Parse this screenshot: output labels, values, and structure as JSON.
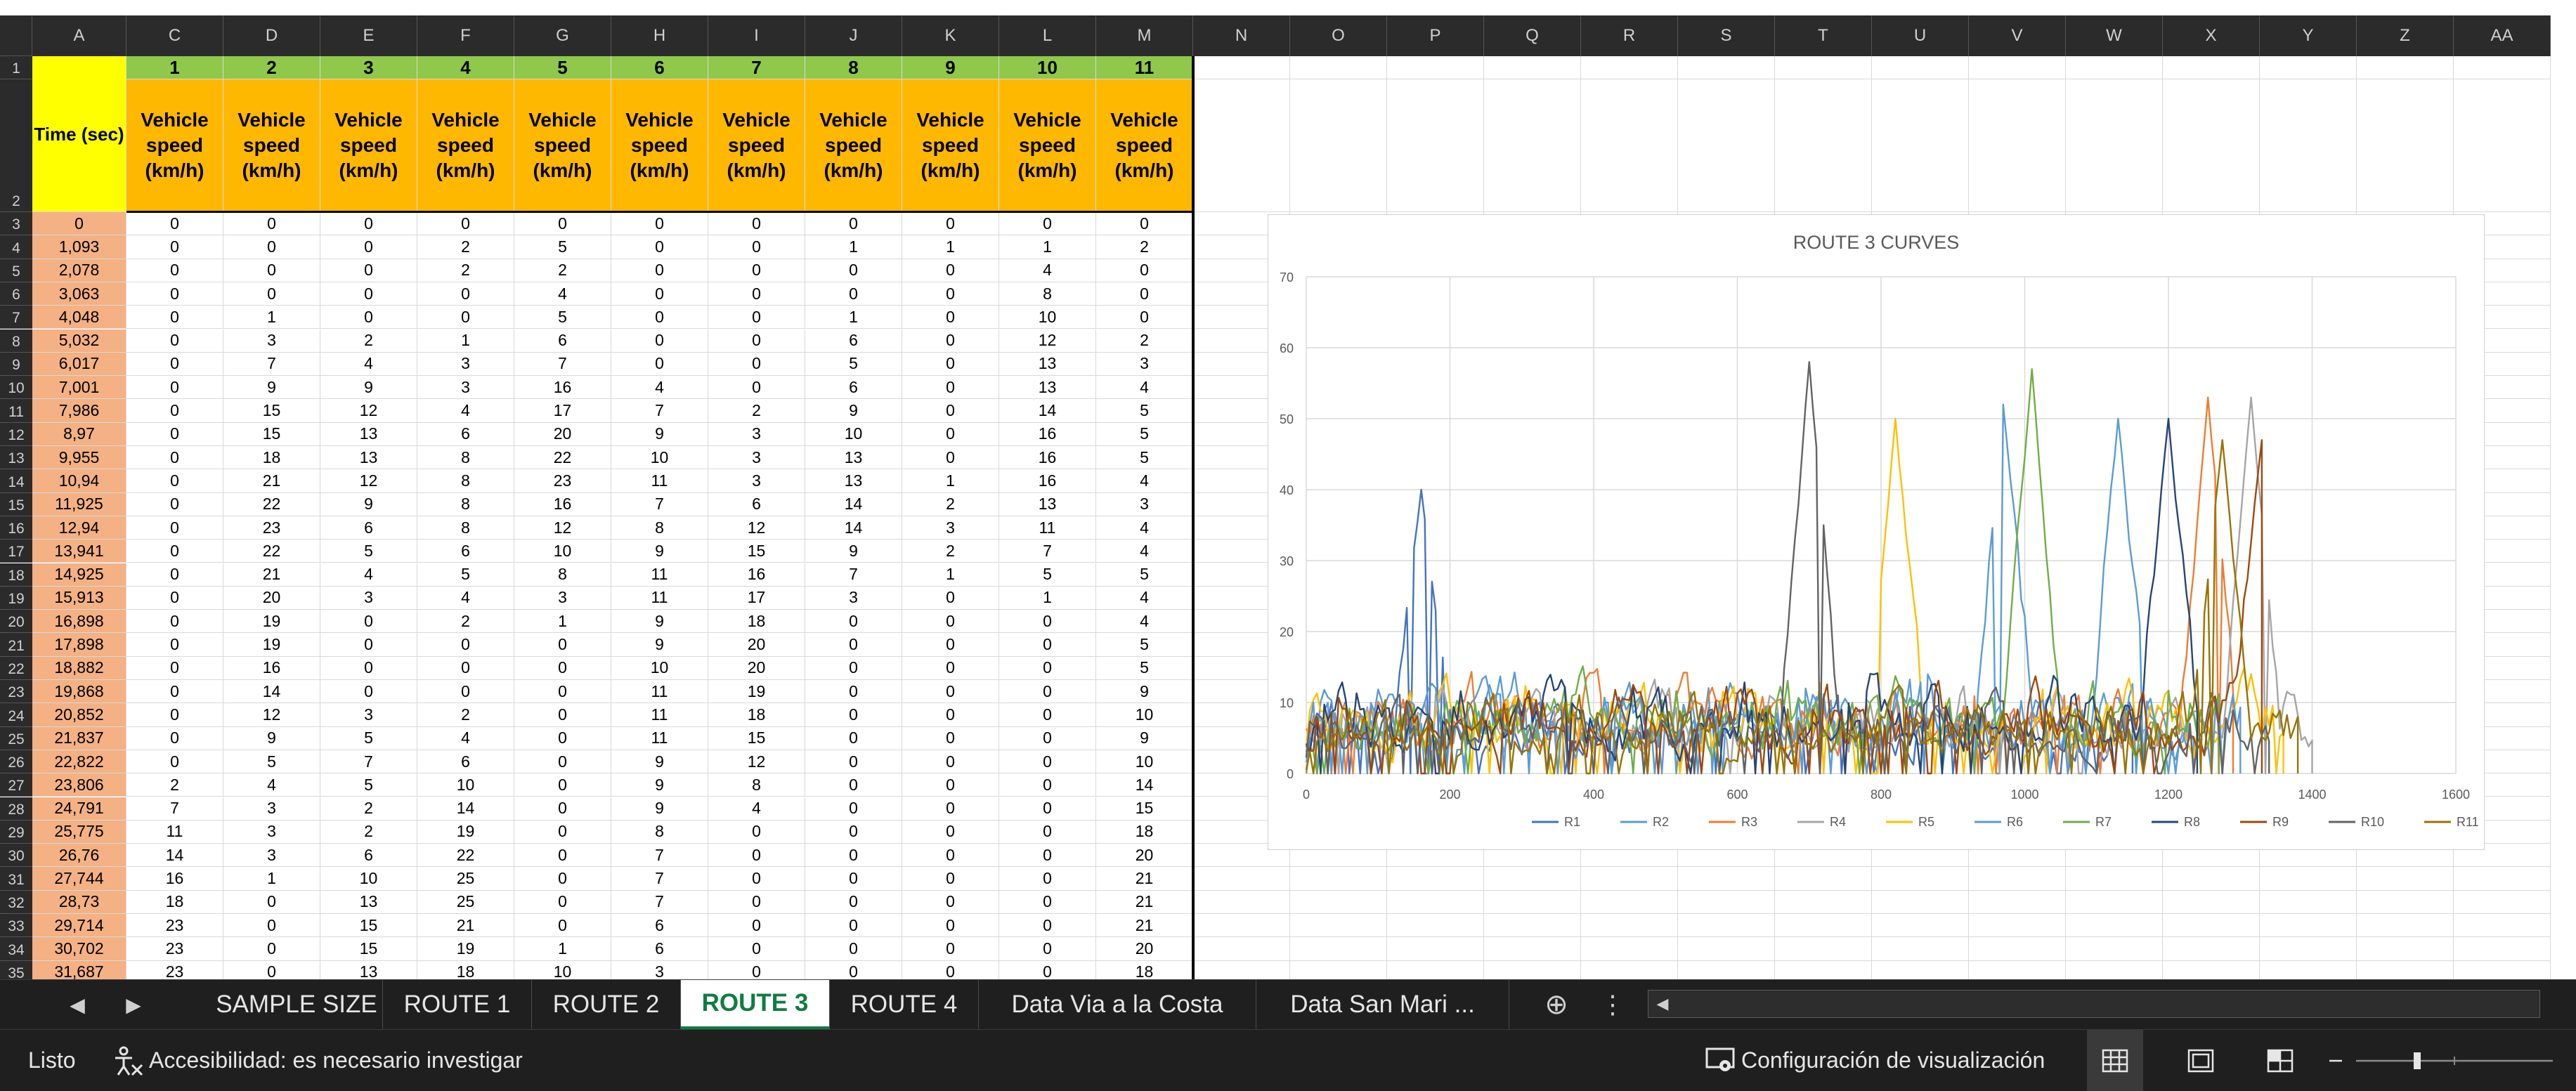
{
  "columns": [
    "A",
    "C",
    "D",
    "E",
    "F",
    "G",
    "H",
    "I",
    "J",
    "K",
    "L",
    "M",
    "N",
    "O",
    "P",
    "Q",
    "R",
    "S",
    "T",
    "U",
    "V",
    "W",
    "X",
    "Y",
    "Z",
    "AA"
  ],
  "header": {
    "vehicle_numbers": [
      "1",
      "2",
      "3",
      "4",
      "5",
      "6",
      "7",
      "8",
      "9",
      "10",
      "11"
    ],
    "time_label": "Time (sec)",
    "speed_label": "Vehicle speed (km/h)"
  },
  "rows": [
    {
      "num": "3",
      "t": "0",
      "v": [
        "0",
        "0",
        "0",
        "0",
        "0",
        "0",
        "0",
        "0",
        "0",
        "0",
        "0"
      ]
    },
    {
      "num": "4",
      "t": "1,093",
      "v": [
        "0",
        "0",
        "0",
        "2",
        "5",
        "0",
        "0",
        "1",
        "1",
        "1",
        "2"
      ]
    },
    {
      "num": "5",
      "t": "2,078",
      "v": [
        "0",
        "0",
        "0",
        "2",
        "2",
        "0",
        "0",
        "0",
        "0",
        "4",
        "0"
      ]
    },
    {
      "num": "6",
      "t": "3,063",
      "v": [
        "0",
        "0",
        "0",
        "0",
        "4",
        "0",
        "0",
        "0",
        "0",
        "8",
        "0"
      ]
    },
    {
      "num": "7",
      "t": "4,048",
      "v": [
        "0",
        "1",
        "0",
        "0",
        "5",
        "0",
        "0",
        "1",
        "0",
        "10",
        "0"
      ]
    },
    {
      "num": "8",
      "t": "5,032",
      "v": [
        "0",
        "3",
        "2",
        "1",
        "6",
        "0",
        "0",
        "6",
        "0",
        "12",
        "2"
      ]
    },
    {
      "num": "9",
      "t": "6,017",
      "v": [
        "0",
        "7",
        "4",
        "3",
        "7",
        "0",
        "0",
        "5",
        "0",
        "13",
        "3"
      ]
    },
    {
      "num": "10",
      "t": "7,001",
      "v": [
        "0",
        "9",
        "9",
        "3",
        "16",
        "4",
        "0",
        "6",
        "0",
        "13",
        "4"
      ]
    },
    {
      "num": "11",
      "t": "7,986",
      "v": [
        "0",
        "15",
        "12",
        "4",
        "17",
        "7",
        "2",
        "9",
        "0",
        "14",
        "5"
      ]
    },
    {
      "num": "12",
      "t": "8,97",
      "v": [
        "0",
        "15",
        "13",
        "6",
        "20",
        "9",
        "3",
        "10",
        "0",
        "16",
        "5"
      ]
    },
    {
      "num": "13",
      "t": "9,955",
      "v": [
        "0",
        "18",
        "13",
        "8",
        "22",
        "10",
        "3",
        "13",
        "0",
        "16",
        "5"
      ]
    },
    {
      "num": "14",
      "t": "10,94",
      "v": [
        "0",
        "21",
        "12",
        "8",
        "23",
        "11",
        "3",
        "13",
        "1",
        "16",
        "4"
      ]
    },
    {
      "num": "15",
      "t": "11,925",
      "v": [
        "0",
        "22",
        "9",
        "8",
        "16",
        "7",
        "6",
        "14",
        "2",
        "13",
        "3"
      ]
    },
    {
      "num": "16",
      "t": "12,94",
      "v": [
        "0",
        "23",
        "6",
        "8",
        "12",
        "8",
        "12",
        "14",
        "3",
        "11",
        "4"
      ]
    },
    {
      "num": "17",
      "t": "13,941",
      "v": [
        "0",
        "22",
        "5",
        "6",
        "10",
        "9",
        "15",
        "9",
        "2",
        "7",
        "4"
      ]
    },
    {
      "num": "18",
      "t": "14,925",
      "v": [
        "0",
        "21",
        "4",
        "5",
        "8",
        "11",
        "16",
        "7",
        "1",
        "5",
        "5"
      ]
    },
    {
      "num": "19",
      "t": "15,913",
      "v": [
        "0",
        "20",
        "3",
        "4",
        "3",
        "11",
        "17",
        "3",
        "0",
        "1",
        "4"
      ]
    },
    {
      "num": "20",
      "t": "16,898",
      "v": [
        "0",
        "19",
        "0",
        "2",
        "1",
        "9",
        "18",
        "0",
        "0",
        "0",
        "4"
      ]
    },
    {
      "num": "21",
      "t": "17,898",
      "v": [
        "0",
        "19",
        "0",
        "0",
        "0",
        "9",
        "20",
        "0",
        "0",
        "0",
        "5"
      ]
    },
    {
      "num": "22",
      "t": "18,882",
      "v": [
        "0",
        "16",
        "0",
        "0",
        "0",
        "10",
        "20",
        "0",
        "0",
        "0",
        "5"
      ]
    },
    {
      "num": "23",
      "t": "19,868",
      "v": [
        "0",
        "14",
        "0",
        "0",
        "0",
        "11",
        "19",
        "0",
        "0",
        "0",
        "9"
      ]
    },
    {
      "num": "24",
      "t": "20,852",
      "v": [
        "0",
        "12",
        "3",
        "2",
        "0",
        "11",
        "18",
        "0",
        "0",
        "0",
        "10"
      ]
    },
    {
      "num": "25",
      "t": "21,837",
      "v": [
        "0",
        "9",
        "5",
        "4",
        "0",
        "11",
        "15",
        "0",
        "0",
        "0",
        "9"
      ]
    },
    {
      "num": "26",
      "t": "22,822",
      "v": [
        "0",
        "5",
        "7",
        "6",
        "0",
        "9",
        "12",
        "0",
        "0",
        "0",
        "10"
      ]
    },
    {
      "num": "27",
      "t": "23,806",
      "v": [
        "2",
        "4",
        "5",
        "10",
        "0",
        "9",
        "8",
        "0",
        "0",
        "0",
        "14"
      ]
    },
    {
      "num": "28",
      "t": "24,791",
      "v": [
        "7",
        "3",
        "2",
        "14",
        "0",
        "9",
        "4",
        "0",
        "0",
        "0",
        "15"
      ]
    },
    {
      "num": "29",
      "t": "25,775",
      "v": [
        "11",
        "3",
        "2",
        "19",
        "0",
        "8",
        "0",
        "0",
        "0",
        "0",
        "18"
      ]
    },
    {
      "num": "30",
      "t": "26,76",
      "v": [
        "14",
        "3",
        "6",
        "22",
        "0",
        "7",
        "0",
        "0",
        "0",
        "0",
        "20"
      ]
    },
    {
      "num": "31",
      "t": "27,744",
      "v": [
        "16",
        "1",
        "10",
        "25",
        "0",
        "7",
        "0",
        "0",
        "0",
        "0",
        "21"
      ]
    },
    {
      "num": "32",
      "t": "28,73",
      "v": [
        "18",
        "0",
        "13",
        "25",
        "0",
        "7",
        "0",
        "0",
        "0",
        "0",
        "21"
      ]
    },
    {
      "num": "33",
      "t": "29,714",
      "v": [
        "23",
        "0",
        "15",
        "21",
        "0",
        "6",
        "0",
        "0",
        "0",
        "0",
        "21"
      ]
    },
    {
      "num": "34",
      "t": "30,702",
      "v": [
        "23",
        "0",
        "15",
        "19",
        "1",
        "6",
        "0",
        "0",
        "0",
        "0",
        "20"
      ]
    },
    {
      "num": "35",
      "t": "31,687",
      "v": [
        "23",
        "0",
        "13",
        "18",
        "10",
        "3",
        "0",
        "0",
        "0",
        "0",
        "18"
      ]
    }
  ],
  "sheet_tabs": [
    "SAMPLE SIZE",
    "ROUTE 1",
    "ROUTE 2",
    "ROUTE 3",
    "ROUTE 4",
    "Data Via a la Costa",
    "Data San Mari ..."
  ],
  "active_tab": "ROUTE 3",
  "status": {
    "ready": "Listo",
    "accessibility": "Accesibilidad: es necesario investigar",
    "display_settings": "Configuración de visualización"
  },
  "colors": {
    "green": "#8fc84a",
    "orange": "#ffb800",
    "yellow": "#ffff00",
    "time": "#f4b183",
    "excel_green": "#107c41"
  },
  "icons": [
    "accessibility-icon",
    "display-settings-icon",
    "normal-view-icon",
    "page-layout-icon",
    "page-break-icon",
    "add-sheet-icon",
    "more-options-icon"
  ],
  "chart_data": {
    "type": "line",
    "title": "ROUTE 3 CURVES",
    "xlim": [
      0,
      1600
    ],
    "ylim": [
      0,
      70
    ],
    "xticks": [
      "0",
      "200",
      "400",
      "600",
      "800",
      "1000",
      "1200",
      "1400",
      "1600"
    ],
    "yticks": [
      "0",
      "10",
      "20",
      "30",
      "40",
      "50",
      "60",
      "70"
    ],
    "grid": true,
    "legend_position": "bottom",
    "series": [
      {
        "name": "R1",
        "color": "#4472c4",
        "end": 1150,
        "peak": 40,
        "peak_at": 160,
        "amp": 14,
        "seed": 1
      },
      {
        "name": "R2",
        "color": "#5b9bd5",
        "end": 1235,
        "peak": 52,
        "peak_at": 970,
        "amp": 18,
        "seed": 2
      },
      {
        "name": "R3",
        "color": "#ed7d31",
        "end": 1290,
        "peak": 53,
        "peak_at": 1255,
        "amp": 18,
        "seed": 3
      },
      {
        "name": "R4",
        "color": "#a5a5a5",
        "end": 1400,
        "peak": 53,
        "peak_at": 1315,
        "amp": 16,
        "seed": 4
      },
      {
        "name": "R5",
        "color": "#ffc000",
        "end": 1360,
        "peak": 50,
        "peak_at": 820,
        "amp": 18,
        "seed": 5
      },
      {
        "name": "R6",
        "color": "#5b9bd5",
        "end": 1300,
        "peak": 50,
        "peak_at": 1130,
        "amp": 18,
        "seed": 6
      },
      {
        "name": "R7",
        "color": "#70ad47",
        "end": 1270,
        "peak": 57,
        "peak_at": 1010,
        "amp": 18,
        "seed": 7
      },
      {
        "name": "R8",
        "color": "#264478",
        "end": 1240,
        "peak": 50,
        "peak_at": 1200,
        "amp": 18,
        "seed": 8
      },
      {
        "name": "R9",
        "color": "#9e480e",
        "end": 1330,
        "peak": 47,
        "peak_at": 1330,
        "amp": 16,
        "seed": 9
      },
      {
        "name": "R10",
        "color": "#636363",
        "end": 1340,
        "peak": 58,
        "peak_at": 700,
        "amp": 15,
        "seed": 10
      },
      {
        "name": "R11",
        "color": "#997300",
        "end": 1380,
        "peak": 47,
        "peak_at": 1275,
        "amp": 15,
        "seed": 11
      }
    ]
  }
}
